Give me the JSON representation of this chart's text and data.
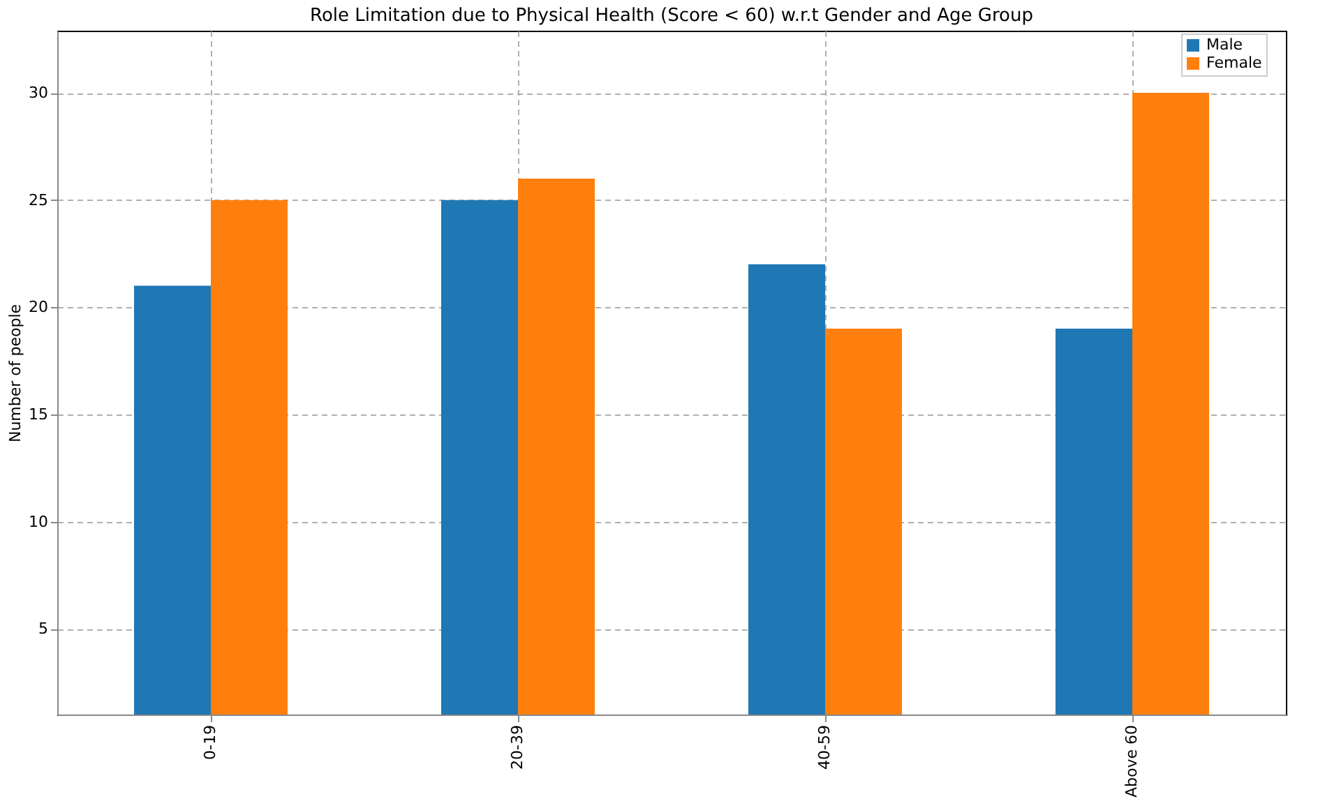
{
  "chart_data": {
    "type": "bar",
    "title": "Role Limitation due to Physical Health (Score < 60) w.r.t Gender and Age Group",
    "ylabel": "Number of people",
    "categories": [
      "0-19",
      "20-39",
      "40-59",
      "Above 60"
    ],
    "series": [
      {
        "name": "Male",
        "color": "#1f77b4",
        "values": [
          21,
          25,
          22,
          19
        ]
      },
      {
        "name": "Female",
        "color": "#ff7f0e",
        "values": [
          25,
          26,
          19,
          30
        ]
      }
    ],
    "ylim": [
      1,
      32.9
    ],
    "yticks": [
      5,
      10,
      15,
      20,
      25,
      30
    ],
    "grid": true,
    "legend": "top right"
  }
}
